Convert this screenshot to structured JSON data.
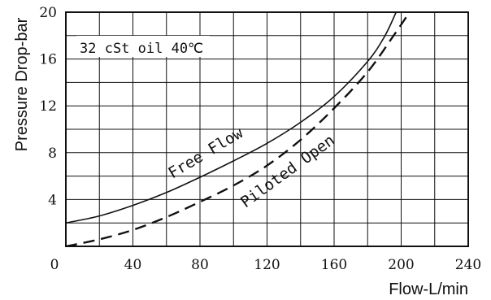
{
  "chart_data": {
    "type": "line",
    "xlabel": "Flow-L/min",
    "ylabel": "Pressure Drop-bar",
    "xlim": [
      0,
      240
    ],
    "ylim": [
      0,
      20
    ],
    "x_ticks": [
      0,
      40,
      80,
      120,
      160,
      200,
      240
    ],
    "y_ticks": [
      4,
      8,
      12,
      16,
      20
    ],
    "grid": true,
    "annotations": {
      "condition": "32 cSt oil 40℃"
    },
    "series": [
      {
        "name": "Free Flow",
        "style": "solid",
        "points": [
          [
            0,
            2.0
          ],
          [
            20,
            2.6
          ],
          [
            40,
            3.5
          ],
          [
            60,
            4.6
          ],
          [
            80,
            5.9
          ],
          [
            100,
            7.3
          ],
          [
            120,
            8.8
          ],
          [
            140,
            10.6
          ],
          [
            160,
            12.8
          ],
          [
            180,
            15.8
          ],
          [
            190,
            17.9
          ],
          [
            197,
            20.0
          ]
        ]
      },
      {
        "name": "Piloted Open",
        "style": "dashed",
        "points": [
          [
            0,
            0.0
          ],
          [
            20,
            0.6
          ],
          [
            40,
            1.4
          ],
          [
            60,
            2.5
          ],
          [
            80,
            3.8
          ],
          [
            100,
            5.2
          ],
          [
            120,
            6.9
          ],
          [
            140,
            9.1
          ],
          [
            160,
            11.8
          ],
          [
            180,
            14.9
          ],
          [
            195,
            17.9
          ],
          [
            205,
            20.0
          ]
        ]
      }
    ]
  }
}
